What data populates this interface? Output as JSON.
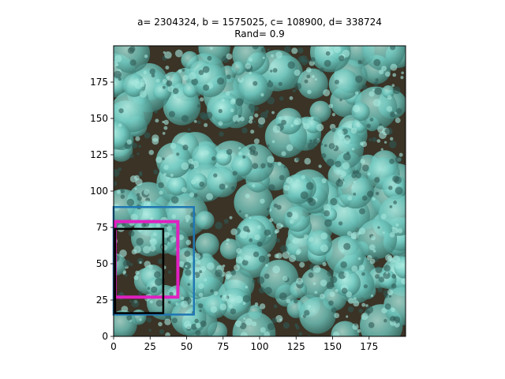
{
  "chart_data": {
    "type": "image_with_boxes",
    "title_line1": "a= 2304324, b = 1575025, c= 108900, d= 338724",
    "title_line2": "Rand= 0.9",
    "xlabel": "",
    "ylabel": "",
    "xlim": [
      0,
      200
    ],
    "ylim": [
      0,
      200
    ],
    "xticks": [
      0,
      25,
      50,
      75,
      100,
      125,
      150,
      175
    ],
    "yticks": [
      0,
      25,
      50,
      75,
      100,
      125,
      150,
      175
    ],
    "grid": false,
    "background": "aerial image of tree canopy (cyan foliage on dark ground)",
    "boxes": [
      {
        "color": "#1f77b4",
        "x0": 0,
        "y0": 15,
        "x1": 55,
        "y1": 89
      },
      {
        "color": "#e020c0",
        "x0": 1,
        "y0": 27,
        "x1": 44,
        "y1": 79
      },
      {
        "color": "#000000",
        "x0": 1,
        "y0": 16,
        "x1": 34,
        "y1": 74
      }
    ]
  },
  "colors": {
    "foliage": "#6fc8bf",
    "foliage_dark": "#3f7f78",
    "ground": "#3a3326"
  }
}
